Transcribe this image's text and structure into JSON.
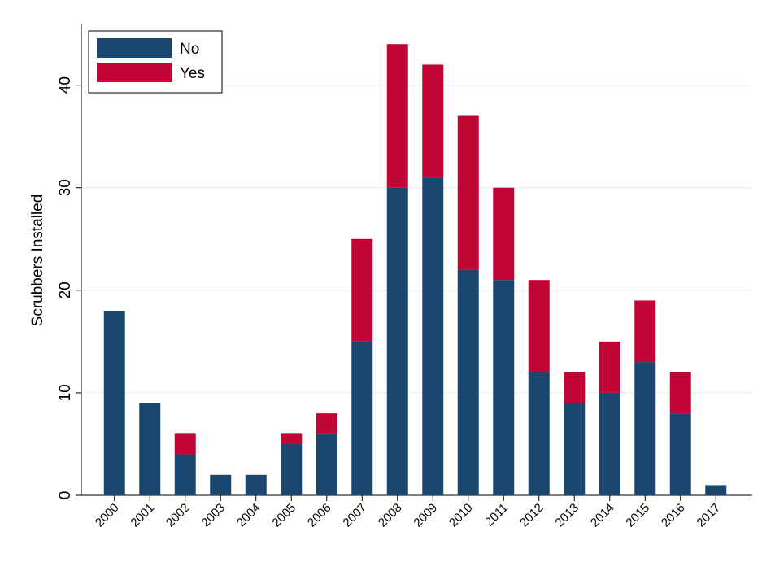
{
  "chart_data": {
    "type": "stacked_bar",
    "y_label": "Scrubbers Installed",
    "categories": [
      "2000",
      "2001",
      "2002",
      "2003",
      "2004",
      "2005",
      "2006",
      "2007",
      "2008",
      "2009",
      "2010",
      "2011",
      "2012",
      "2013",
      "2014",
      "2015",
      "2016",
      "2017"
    ],
    "series": [
      {
        "name": "No",
        "color": "#1a476f",
        "values": [
          18,
          9,
          4,
          2,
          2,
          5,
          6,
          15,
          30,
          31,
          22,
          21,
          12,
          9,
          10,
          13,
          8,
          1
        ]
      },
      {
        "name": "Yes",
        "color": "#c10534",
        "values": [
          0,
          0,
          2,
          0,
          0,
          1,
          2,
          10,
          14,
          11,
          15,
          9,
          9,
          3,
          5,
          6,
          4,
          0
        ]
      }
    ],
    "ylim": [
      0,
      46
    ],
    "yticks": [
      0,
      10,
      20,
      30,
      40
    ],
    "grid": true,
    "legend": "top-left"
  }
}
